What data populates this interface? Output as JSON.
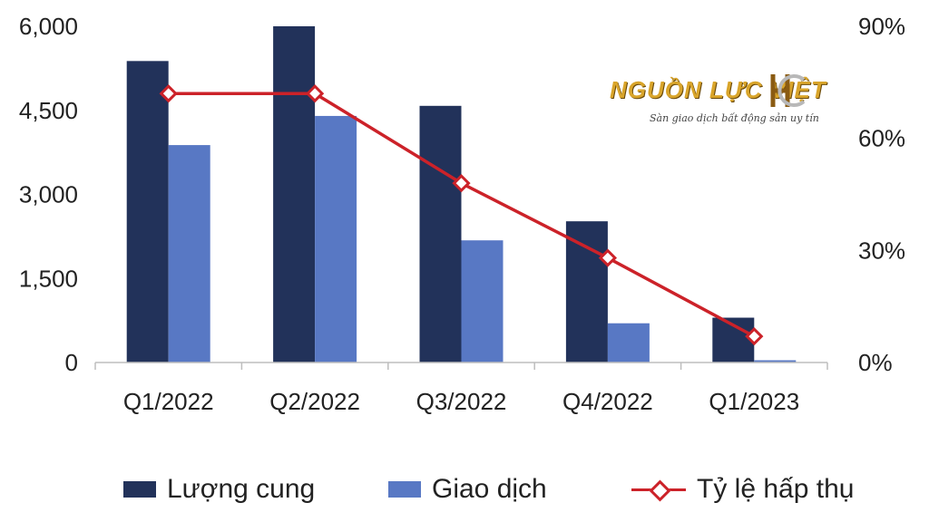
{
  "chart_data": {
    "type": "bar",
    "categories": [
      "Q1/2022",
      "Q2/2022",
      "Q3/2022",
      "Q4/2022",
      "Q1/2023"
    ],
    "series": [
      {
        "name": "Lượng cung",
        "type": "bar",
        "axis": "left",
        "color": "#22325a",
        "values": [
          5380,
          6000,
          4580,
          2520,
          800
        ]
      },
      {
        "name": "Giao dịch",
        "type": "bar",
        "axis": "left",
        "color": "#5878c4",
        "values": [
          3880,
          4400,
          2180,
          700,
          40
        ]
      },
      {
        "name": "Tỷ lệ hấp thụ",
        "type": "line",
        "axis": "right",
        "color": "#cc2229",
        "marker": "diamond",
        "values": [
          72,
          72,
          48,
          28,
          7
        ]
      }
    ],
    "y_left": {
      "min": 0,
      "max": 6000,
      "ticks": [
        0,
        1500,
        3000,
        4500,
        6000
      ],
      "tick_labels": [
        "0",
        "1,500",
        "3,000",
        "4,500",
        "6,000"
      ]
    },
    "y_right": {
      "min": 0,
      "max": 90,
      "ticks": [
        0,
        30,
        60,
        90
      ],
      "tick_labels": [
        "0%",
        "30%",
        "60%",
        "90%"
      ]
    },
    "grid": false,
    "legend_position": "bottom",
    "title": "",
    "xlabel": "",
    "ylabel": ""
  },
  "watermark": {
    "name": "NGUỒN LỰC VIỆT",
    "tagline": "Sàn giao dịch bất động sản uy tín",
    "mark": "HC"
  }
}
